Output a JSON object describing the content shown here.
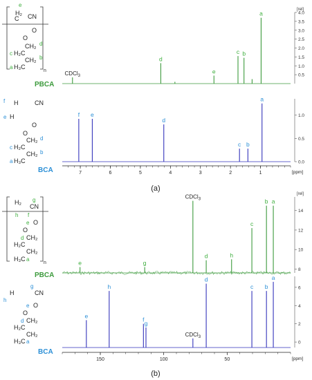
{
  "figure": {
    "panel_a_label": "(a)",
    "panel_b_label": "(b)",
    "colors": {
      "polymer": "#3c9a3c",
      "monomer": "#3333bb",
      "label_letter": "#2b8fd6",
      "label_letter_green": "#3cae3c",
      "axis": "#222222"
    }
  },
  "chart_data": [
    {
      "panel": "a",
      "type": "line",
      "xlabel": "[ppm]",
      "x_range": [
        7.6,
        0.0
      ],
      "x_ticks": [
        "7",
        "6",
        "5",
        "4",
        "3",
        "2",
        "1",
        "[ppm]"
      ],
      "solvent_label": "CDCl3",
      "series": [
        {
          "name": "PBCA",
          "y_axis_unit": "[rel]",
          "y_ticks": [
            "0.5",
            "1.0",
            "1.5",
            "2.0",
            "2.5",
            "3.0",
            "3.5",
            "4.0"
          ],
          "peaks": [
            {
              "x": 7.26,
              "y": 0.35,
              "label": "CDCl3"
            },
            {
              "x": 4.32,
              "y": 1.15,
              "label": "d"
            },
            {
              "x": 3.85,
              "y": 0.1,
              "label": ""
            },
            {
              "x": 2.55,
              "y": 0.45,
              "label": "e"
            },
            {
              "x": 1.75,
              "y": 1.55,
              "label": "c"
            },
            {
              "x": 1.55,
              "y": 1.45,
              "label": "b"
            },
            {
              "x": 1.28,
              "y": 0.25,
              "label": ""
            },
            {
              "x": 0.98,
              "y": 3.7,
              "label": "a"
            }
          ],
          "structure_labels": [
            "e",
            "CN",
            "O",
            "O",
            "CH2",
            "d",
            "c",
            "b",
            "a",
            "n"
          ]
        },
        {
          "name": "BCA",
          "y_axis_unit": "",
          "y_ticks": [
            "0.0",
            "0.5",
            "1.0"
          ],
          "peaks": [
            {
              "x": 7.05,
              "y": 0.92,
              "label": "f"
            },
            {
              "x": 6.6,
              "y": 0.92,
              "label": "e"
            },
            {
              "x": 4.22,
              "y": 0.8,
              "label": "d"
            },
            {
              "x": 1.7,
              "y": 0.28,
              "label": "c"
            },
            {
              "x": 1.42,
              "y": 0.28,
              "label": "b"
            },
            {
              "x": 0.95,
              "y": 1.25,
              "label": "a"
            }
          ],
          "structure_labels": [
            "f",
            "H",
            "CN",
            "e",
            "O",
            "O",
            "CH2",
            "d",
            "c",
            "b",
            "a"
          ]
        }
      ]
    },
    {
      "panel": "b",
      "type": "line",
      "xlabel": "[ppm]",
      "x_range": [
        180,
        0
      ],
      "x_ticks": [
        "150",
        "100",
        "50",
        "[ppm]"
      ],
      "solvent_label": "CDCl3",
      "series": [
        {
          "name": "PBCA",
          "y_axis_unit": "[rel]",
          "y_ticks": [
            "8",
            "10",
            "12",
            "14"
          ],
          "peaks": [
            {
              "x": 166,
              "y": 8.2,
              "label": "e"
            },
            {
              "x": 115,
              "y": 8.2,
              "label": "g"
            },
            {
              "x": 77.0,
              "y": 15.0,
              "label": "CDCl3"
            },
            {
              "x": 66.5,
              "y": 8.9,
              "label": "d"
            },
            {
              "x": 46.5,
              "y": 9.0,
              "label": "h"
            },
            {
              "x": 30.5,
              "y": 12.2,
              "label": "c"
            },
            {
              "x": 19.0,
              "y": 14.5,
              "label": "b"
            },
            {
              "x": 13.6,
              "y": 14.5,
              "label": "a"
            }
          ],
          "structure_labels": [
            "g",
            "CN",
            "h",
            "f",
            "e",
            "O",
            "O",
            "d",
            "c",
            "b",
            "a",
            "n"
          ]
        },
        {
          "name": "BCA",
          "y_axis_unit": "",
          "y_ticks": [
            "0",
            "2",
            "4",
            "6"
          ],
          "peaks": [
            {
              "x": 161,
              "y": 2.4,
              "label": "e"
            },
            {
              "x": 143,
              "y": 5.6,
              "label": "h"
            },
            {
              "x": 116,
              "y": 2.0,
              "label": "f"
            },
            {
              "x": 114,
              "y": 1.6,
              "label": "g"
            },
            {
              "x": 77.0,
              "y": 0.4,
              "label": "CDCl3"
            },
            {
              "x": 66.5,
              "y": 6.4,
              "label": "d"
            },
            {
              "x": 30.5,
              "y": 5.6,
              "label": "c"
            },
            {
              "x": 19.0,
              "y": 5.6,
              "label": "b"
            },
            {
              "x": 13.6,
              "y": 6.6,
              "label": "a"
            }
          ],
          "structure_labels": [
            "g",
            "H",
            "CN",
            "h",
            "e",
            "O",
            "O",
            "d",
            "c",
            "b",
            "a"
          ]
        }
      ]
    }
  ]
}
